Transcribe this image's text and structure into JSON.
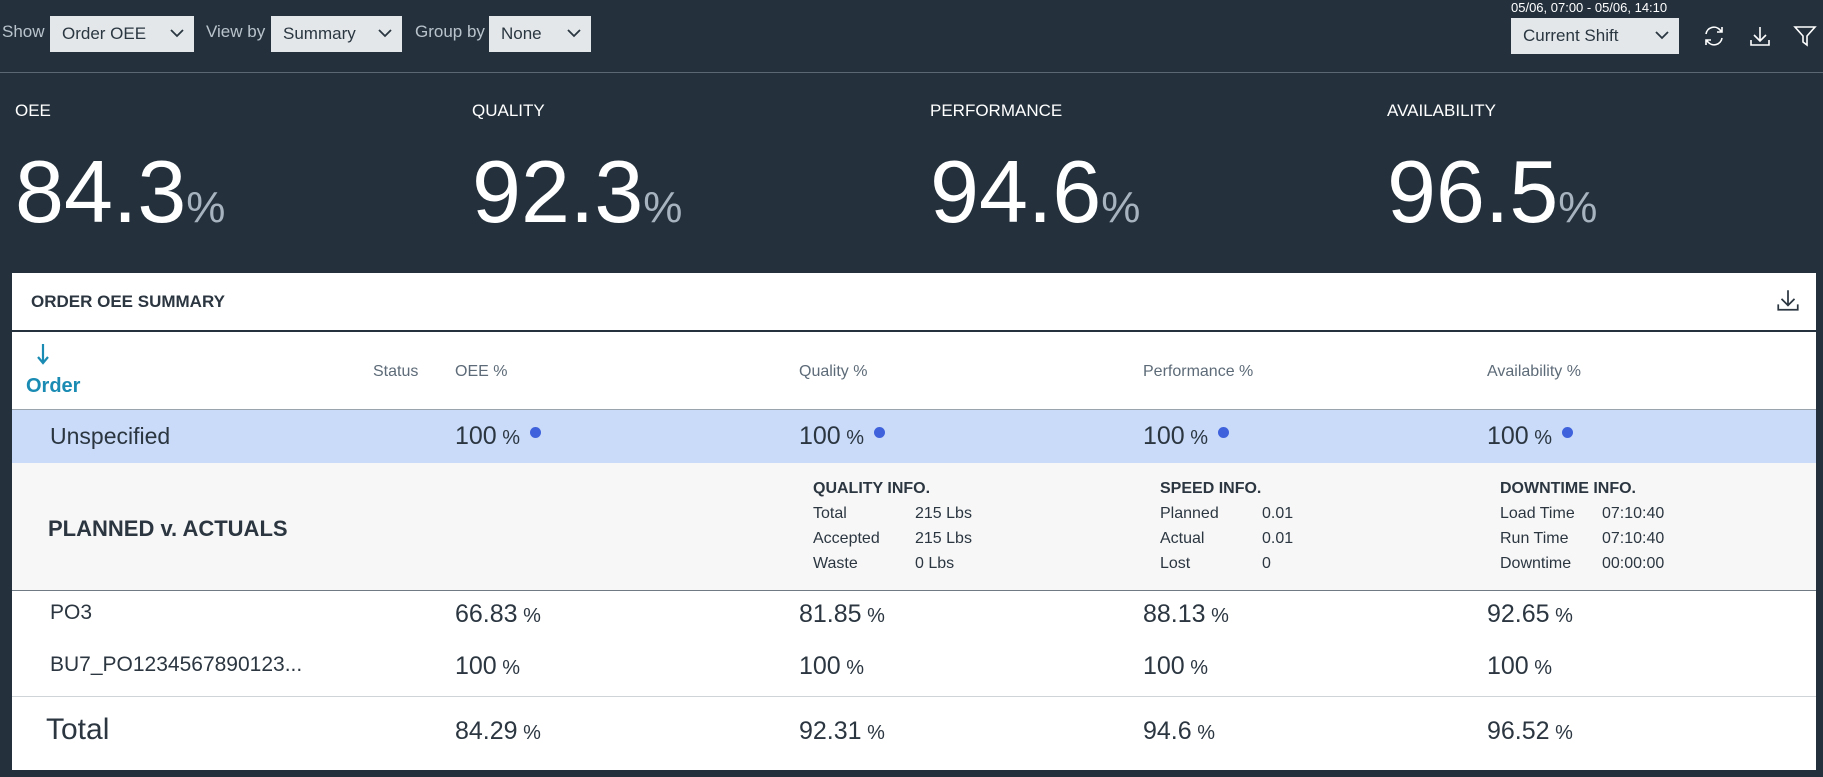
{
  "toolbar": {
    "show_label": "Show",
    "show_value": "Order OEE",
    "view_label": "View by",
    "view_value": "Summary",
    "group_label": "Group by",
    "group_value": "None",
    "time_range": "05/06, 07:00 - 05/06, 14:10",
    "shift": "Current Shift"
  },
  "unit": "%",
  "kpis": [
    {
      "label": "OEE",
      "value": 84.3
    },
    {
      "label": "QUALITY",
      "value": 92.3
    },
    {
      "label": "PERFORMANCE",
      "value": 94.6
    },
    {
      "label": "AVAILABILITY",
      "value": 96.5
    }
  ],
  "table": {
    "title": "ORDER OEE SUMMARY",
    "sort_column": "Order",
    "columns": [
      "Status",
      "OEE %",
      "Quality %",
      "Performance %",
      "Availability %"
    ],
    "group_row": {
      "order": "Unspecified",
      "values": [
        100,
        100,
        100,
        100
      ]
    },
    "details": {
      "title": "PLANNED v. ACTUALS",
      "sections": [
        {
          "title": "QUALITY INFO.",
          "items": [
            [
              "Total",
              "215 Lbs"
            ],
            [
              "Accepted",
              "215 Lbs"
            ],
            [
              "Waste",
              "0 Lbs"
            ]
          ]
        },
        {
          "title": "SPEED INFO.",
          "items": [
            [
              "Planned",
              "0.01"
            ],
            [
              "Actual",
              "0.01"
            ],
            [
              "Lost",
              "0"
            ]
          ]
        },
        {
          "title": "DOWNTIME INFO.",
          "items": [
            [
              "Load Time",
              "07:10:40"
            ],
            [
              "Run Time",
              "07:10:40"
            ],
            [
              "Downtime",
              "00:00:00"
            ]
          ]
        }
      ]
    },
    "rows": [
      {
        "order": "PO3",
        "values": [
          66.83,
          81.85,
          88.13,
          92.65
        ]
      },
      {
        "order": "BU7_PO1234567890123...",
        "values": [
          100,
          100,
          100,
          100
        ]
      }
    ],
    "total": {
      "label": "Total",
      "values": [
        84.29,
        92.31,
        94.6,
        96.52
      ]
    }
  }
}
